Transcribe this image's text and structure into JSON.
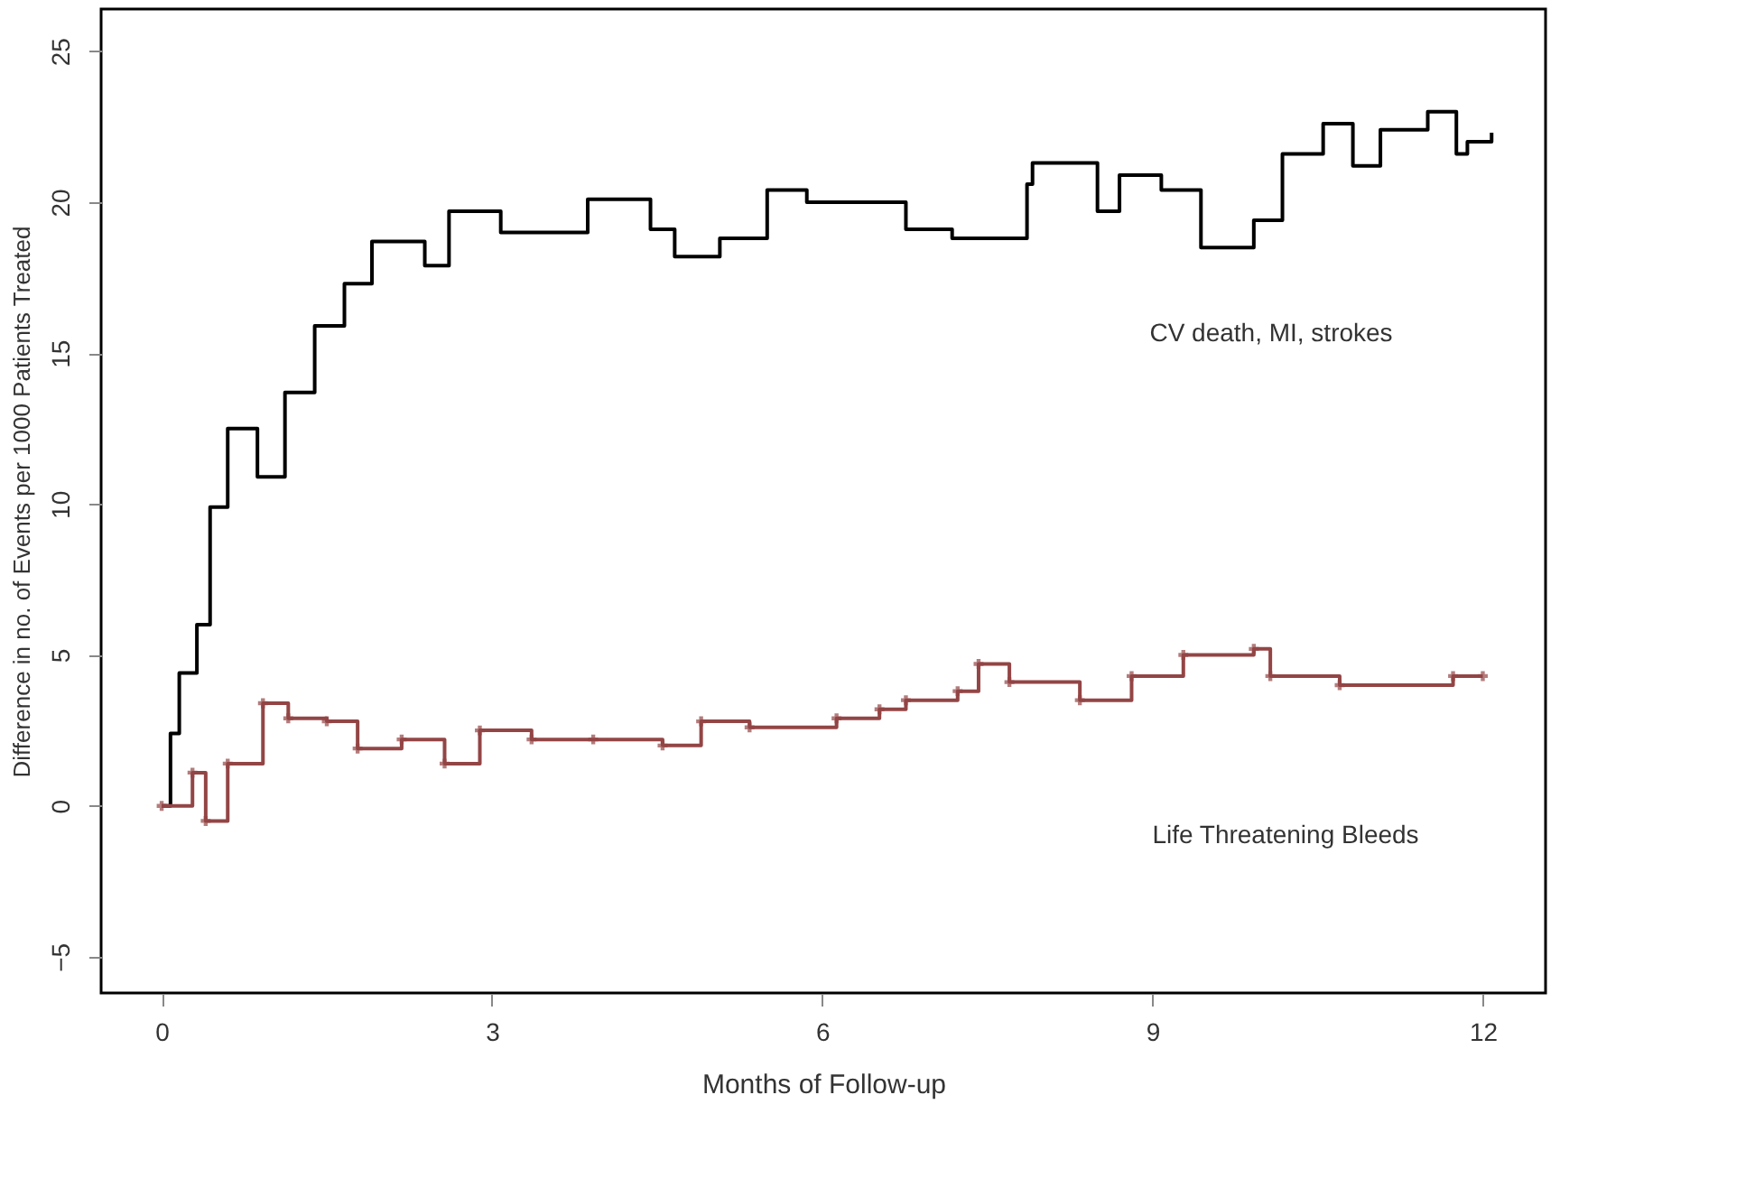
{
  "chart_data": {
    "type": "step",
    "xlabel": "Months of Follow-up",
    "ylabel": "Difference in no. of Events per 1000 Patients Treated",
    "xlim": [
      -0.55,
      12.57
    ],
    "ylim": [
      -6.2,
      26.4
    ],
    "xticks": [
      0,
      3,
      6,
      9,
      12
    ],
    "yticks": [
      -5,
      0,
      5,
      10,
      15,
      20,
      25
    ],
    "grid": false,
    "series": [
      {
        "color": "#000000",
        "marker": "none",
        "x": [
          0,
          0.02,
          0.08,
          0.16,
          0.32,
          0.44,
          0.6,
          0.87,
          1.12,
          1.39,
          1.66,
          1.91,
          2.39,
          2.61,
          3.08,
          3.4,
          3.87,
          4.44,
          4.66,
          5.07,
          5.5,
          5.86,
          6.44,
          6.76,
          7.18,
          7.86,
          7.91,
          8.5,
          8.7,
          9.08,
          9.44,
          9.92,
          10.18,
          10.55,
          10.82,
          11.07,
          11.5,
          11.76,
          11.86,
          12.08
        ],
        "values": [
          0,
          0,
          2.4,
          4.4,
          6,
          9.9,
          12.5,
          10.9,
          13.7,
          15.9,
          17.3,
          18.7,
          17.9,
          19.7,
          19.0,
          19.0,
          20.1,
          19.1,
          18.2,
          18.8,
          20.4,
          20.0,
          20.0,
          19.1,
          18.8,
          20.6,
          21.3,
          19.7,
          20.9,
          20.4,
          18.5,
          19.4,
          21.6,
          22.6,
          21.2,
          22.4,
          23.0,
          21.6,
          22.0,
          22.3
        ]
      },
      {
        "color": "#934545",
        "marker": "cross",
        "x": [
          0,
          0.28,
          0.4,
          0.6,
          0.92,
          1.15,
          1.5,
          1.78,
          2.18,
          2.57,
          2.89,
          3.36,
          3.92,
          4.55,
          4.9,
          5.34,
          6.13,
          6.52,
          6.76,
          7.23,
          7.42,
          7.7,
          8.34,
          8.81,
          9.28,
          9.92,
          10.07,
          10.7,
          11.73,
          12.0
        ],
        "values": [
          0,
          1.1,
          -0.5,
          1.4,
          3.4,
          2.9,
          2.8,
          1.9,
          2.2,
          1.4,
          2.5,
          2.2,
          2.2,
          2.0,
          2.8,
          2.6,
          2.9,
          3.2,
          3.5,
          3.8,
          4.7,
          4.1,
          3.5,
          4.3,
          5.0,
          5.2,
          4.3,
          4.0,
          4.3,
          4.3
        ]
      }
    ],
    "annotations": [
      "CV death, MI, strokes",
      "Life Threatening Bleeds"
    ]
  }
}
